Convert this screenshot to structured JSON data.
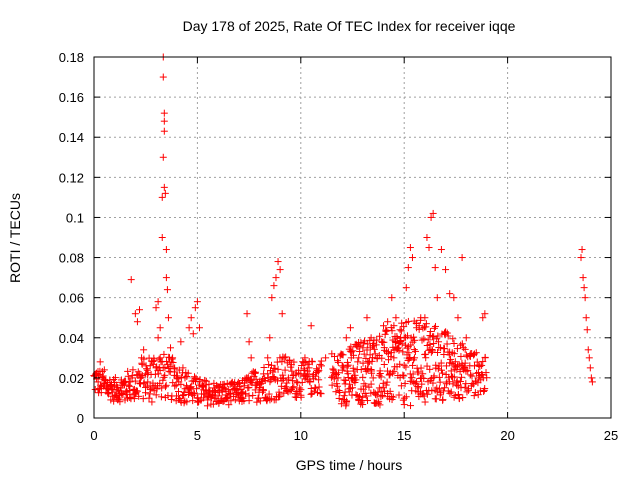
{
  "chart_data": {
    "type": "scatter",
    "title": "Day 178 of 2025, Rate Of TEC Index for receiver iqqe",
    "xlabel": "GPS time / hours",
    "ylabel": "ROTI / TECUs",
    "xlim": [
      0,
      25
    ],
    "ylim": [
      0,
      0.18
    ],
    "x_ticks": [
      {
        "value": 0,
        "label": "0"
      },
      {
        "value": 5,
        "label": "5"
      },
      {
        "value": 10,
        "label": "10"
      },
      {
        "value": 15,
        "label": "15"
      },
      {
        "value": 20,
        "label": "20"
      },
      {
        "value": 25,
        "label": "25"
      }
    ],
    "y_ticks": [
      {
        "value": 0,
        "label": "0"
      },
      {
        "value": 0.02,
        "label": "0.02"
      },
      {
        "value": 0.04,
        "label": "0.04"
      },
      {
        "value": 0.06,
        "label": "0.06"
      },
      {
        "value": 0.08,
        "label": "0.08"
      },
      {
        "value": 0.1,
        "label": "0.1"
      },
      {
        "value": 0.12,
        "label": "0.12"
      },
      {
        "value": 0.14,
        "label": "0.14"
      },
      {
        "value": 0.16,
        "label": "0.16"
      },
      {
        "value": 0.18,
        "label": "0.18"
      }
    ],
    "grid": true,
    "marker": "+",
    "marker_color": "#ff0000",
    "series": [
      {
        "points": [
          [
            0.1,
            0.022
          ],
          [
            0.2,
            0.018
          ],
          [
            0.3,
            0.028
          ],
          [
            0.4,
            0.02
          ],
          [
            0.5,
            0.024
          ],
          [
            0.6,
            0.015
          ],
          [
            0.7,
            0.012
          ],
          [
            0.8,
            0.016
          ],
          [
            0.9,
            0.014
          ],
          [
            1.0,
            0.011
          ],
          [
            1.1,
            0.013
          ],
          [
            1.2,
            0.01
          ],
          [
            1.3,
            0.015
          ],
          [
            1.4,
            0.012
          ],
          [
            1.5,
            0.009
          ],
          [
            1.6,
            0.013
          ],
          [
            1.7,
            0.018
          ],
          [
            1.8,
            0.069
          ],
          [
            1.9,
            0.014
          ],
          [
            2.0,
            0.012
          ],
          [
            2.0,
            0.052
          ],
          [
            2.1,
            0.048
          ],
          [
            2.2,
            0.054
          ],
          [
            2.3,
            0.03
          ],
          [
            2.4,
            0.034
          ],
          [
            2.5,
            0.022
          ],
          [
            2.6,
            0.018
          ],
          [
            2.7,
            0.012
          ],
          [
            2.8,
            0.008
          ],
          [
            2.9,
            0.015
          ],
          [
            3.0,
            0.025
          ],
          [
            3.0,
            0.055
          ],
          [
            3.1,
            0.058
          ],
          [
            3.1,
            0.04
          ],
          [
            3.2,
            0.045
          ],
          [
            3.2,
            0.03
          ],
          [
            3.3,
            0.11
          ],
          [
            3.3,
            0.09
          ],
          [
            3.35,
            0.18
          ],
          [
            3.35,
            0.17
          ],
          [
            3.4,
            0.152
          ],
          [
            3.4,
            0.148
          ],
          [
            3.4,
            0.143
          ],
          [
            3.35,
            0.13
          ],
          [
            3.4,
            0.115
          ],
          [
            3.45,
            0.112
          ],
          [
            3.5,
            0.084
          ],
          [
            3.5,
            0.07
          ],
          [
            3.55,
            0.064
          ],
          [
            3.6,
            0.05
          ],
          [
            3.7,
            0.035
          ],
          [
            3.8,
            0.03
          ],
          [
            3.9,
            0.025
          ],
          [
            4.0,
            0.02
          ],
          [
            4.1,
            0.018
          ],
          [
            4.2,
            0.038
          ],
          [
            4.3,
            0.025
          ],
          [
            4.4,
            0.02
          ],
          [
            4.5,
            0.015
          ],
          [
            4.6,
            0.045
          ],
          [
            4.7,
            0.05
          ],
          [
            4.8,
            0.042
          ],
          [
            4.9,
            0.055
          ],
          [
            5.0,
            0.058
          ],
          [
            5.1,
            0.045
          ],
          [
            5.2,
            0.012
          ],
          [
            5.3,
            0.01
          ],
          [
            5.4,
            0.014
          ],
          [
            5.5,
            0.009
          ],
          [
            5.6,
            0.012
          ],
          [
            5.8,
            0.015
          ],
          [
            6.0,
            0.011
          ],
          [
            6.2,
            0.013
          ],
          [
            6.4,
            0.01
          ],
          [
            6.6,
            0.012
          ],
          [
            6.8,
            0.014
          ],
          [
            7.0,
            0.011
          ],
          [
            7.2,
            0.013
          ],
          [
            7.4,
            0.052
          ],
          [
            7.5,
            0.038
          ],
          [
            7.6,
            0.03
          ],
          [
            7.8,
            0.014
          ],
          [
            8.0,
            0.018
          ],
          [
            8.2,
            0.022
          ],
          [
            8.4,
            0.03
          ],
          [
            8.5,
            0.04
          ],
          [
            8.6,
            0.06
          ],
          [
            8.7,
            0.066
          ],
          [
            8.8,
            0.07
          ],
          [
            8.9,
            0.078
          ],
          [
            9.0,
            0.074
          ],
          [
            9.1,
            0.052
          ],
          [
            9.2,
            0.03
          ],
          [
            9.4,
            0.02
          ],
          [
            9.6,
            0.015
          ],
          [
            9.8,
            0.018
          ],
          [
            10.0,
            0.022
          ],
          [
            10.2,
            0.03
          ],
          [
            10.4,
            0.025
          ],
          [
            10.5,
            0.046
          ],
          [
            11.0,
            0.026
          ],
          [
            11.2,
            0.03
          ],
          [
            11.5,
            0.032
          ],
          [
            11.8,
            0.02
          ],
          [
            12.0,
            0.026
          ],
          [
            12.2,
            0.04
          ],
          [
            12.4,
            0.045
          ],
          [
            12.5,
            0.02
          ],
          [
            12.8,
            0.03
          ],
          [
            13.0,
            0.035
          ],
          [
            13.2,
            0.05
          ],
          [
            13.4,
            0.04
          ],
          [
            13.5,
            0.02
          ],
          [
            13.6,
            0.032
          ],
          [
            13.8,
            0.015
          ],
          [
            14.0,
            0.046
          ],
          [
            14.2,
            0.048
          ],
          [
            14.4,
            0.06
          ],
          [
            14.5,
            0.03
          ],
          [
            14.6,
            0.05
          ],
          [
            14.8,
            0.044
          ],
          [
            15.0,
            0.04
          ],
          [
            15.1,
            0.065
          ],
          [
            15.2,
            0.075
          ],
          [
            15.3,
            0.085
          ],
          [
            15.4,
            0.08
          ],
          [
            15.5,
            0.03
          ],
          [
            15.6,
            0.045
          ],
          [
            15.8,
            0.05
          ],
          [
            16.0,
            0.05
          ],
          [
            16.1,
            0.09
          ],
          [
            16.2,
            0.085
          ],
          [
            16.3,
            0.1
          ],
          [
            16.4,
            0.102
          ],
          [
            16.5,
            0.075
          ],
          [
            16.6,
            0.06
          ],
          [
            16.8,
            0.084
          ],
          [
            17.0,
            0.074
          ],
          [
            17.2,
            0.062
          ],
          [
            17.4,
            0.06
          ],
          [
            17.6,
            0.05
          ],
          [
            17.8,
            0.08
          ],
          [
            18.0,
            0.04
          ],
          [
            18.2,
            0.032
          ],
          [
            18.4,
            0.026
          ],
          [
            18.6,
            0.02
          ],
          [
            18.8,
            0.05
          ],
          [
            18.9,
            0.052
          ],
          [
            23.55,
            0.08
          ],
          [
            23.6,
            0.084
          ],
          [
            23.65,
            0.07
          ],
          [
            23.7,
            0.065
          ],
          [
            23.75,
            0.06
          ],
          [
            23.8,
            0.05
          ],
          [
            23.85,
            0.044
          ],
          [
            23.9,
            0.034
          ],
          [
            23.95,
            0.03
          ],
          [
            24.0,
            0.025
          ],
          [
            24.05,
            0.02
          ],
          [
            24.1,
            0.018
          ]
        ],
        "band": [
          [
            0.0,
            0.012,
            0.026
          ],
          [
            1.0,
            0.008,
            0.02
          ],
          [
            2.0,
            0.008,
            0.026
          ],
          [
            3.0,
            0.01,
            0.035
          ],
          [
            4.0,
            0.008,
            0.028
          ],
          [
            5.0,
            0.006,
            0.02
          ],
          [
            6.0,
            0.006,
            0.018
          ],
          [
            7.0,
            0.007,
            0.018
          ],
          [
            8.0,
            0.008,
            0.026
          ],
          [
            9.0,
            0.009,
            0.032
          ],
          [
            10.0,
            0.01,
            0.028
          ],
          [
            11.0,
            0.012,
            0.03
          ],
          [
            12.0,
            0.006,
            0.034
          ],
          [
            13.0,
            0.006,
            0.04
          ],
          [
            14.0,
            0.006,
            0.044
          ],
          [
            15.0,
            0.006,
            0.048
          ],
          [
            16.0,
            0.006,
            0.05
          ],
          [
            17.0,
            0.008,
            0.044
          ],
          [
            18.0,
            0.01,
            0.036
          ],
          [
            19.0,
            0.012,
            0.03
          ]
        ],
        "band_segments": [
          [
            0.0,
            11.0
          ],
          [
            11.5,
            19.0
          ]
        ]
      }
    ]
  }
}
